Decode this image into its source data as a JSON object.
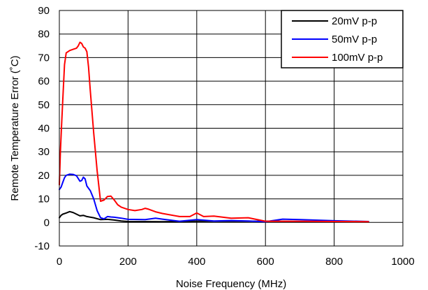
{
  "chart_data": {
    "type": "line",
    "title": "",
    "xlabel": "Noise Frequency (MHz)",
    "ylabel": "Remote Temperature Error (˚C)",
    "xlim": [
      0,
      1000
    ],
    "ylim": [
      -10,
      90
    ],
    "xticks": [
      0,
      200,
      400,
      600,
      800,
      1000
    ],
    "yticks": [
      -10,
      0,
      10,
      20,
      30,
      40,
      50,
      60,
      70,
      80,
      90
    ],
    "xtick_labels": [
      "0",
      "200",
      "400",
      "600",
      "800",
      "1000"
    ],
    "ytick_labels": [
      "-10",
      "0",
      "10",
      "20",
      "30",
      "40",
      "50",
      "60",
      "70",
      "80",
      "90"
    ],
    "grid": true,
    "legend_position": "top-right",
    "series": [
      {
        "name": "20mV p-p",
        "color": "#000000",
        "x": [
          0,
          5,
          10,
          20,
          30,
          40,
          50,
          60,
          70,
          80,
          100,
          120,
          140,
          160,
          180,
          200,
          300,
          400,
          500,
          600,
          700,
          800,
          900
        ],
        "y": [
          2,
          3,
          3.5,
          4,
          4.6,
          4.2,
          3.5,
          2.8,
          3.0,
          2.5,
          2.0,
          1.2,
          1.3,
          1.0,
          0.6,
          0.4,
          0.3,
          0.5,
          0.5,
          0.5,
          0.4,
          0.3,
          0.2
        ]
      },
      {
        "name": "50mV p-p",
        "color": "#0000ff",
        "x": [
          0,
          5,
          10,
          15,
          20,
          30,
          40,
          50,
          60,
          65,
          70,
          75,
          80,
          90,
          100,
          110,
          120,
          130,
          140,
          150,
          160,
          180,
          200,
          250,
          280,
          300,
          350,
          400,
          450,
          500,
          550,
          600,
          650,
          700,
          800,
          900
        ],
        "y": [
          14,
          15,
          17,
          19,
          20,
          20.5,
          20.4,
          19.8,
          17.5,
          17.8,
          19.2,
          18.5,
          15.5,
          13.5,
          10,
          5,
          2,
          1.5,
          2.5,
          2.3,
          2.2,
          1.8,
          1.3,
          1.2,
          1.8,
          1.4,
          0.5,
          1.2,
          0.6,
          0.8,
          0.6,
          0.3,
          1.4,
          1.2,
          0.7,
          0.4
        ]
      },
      {
        "name": "100mV p-p",
        "color": "#ff0000",
        "x": [
          0,
          3,
          6,
          10,
          15,
          20,
          30,
          40,
          50,
          55,
          60,
          65,
          70,
          75,
          80,
          85,
          90,
          100,
          110,
          120,
          130,
          140,
          150,
          160,
          170,
          180,
          200,
          220,
          240,
          250,
          260,
          280,
          300,
          350,
          380,
          400,
          420,
          450,
          500,
          550,
          600,
          700,
          800,
          900
        ],
        "y": [
          16,
          30,
          40,
          52,
          67,
          72,
          73,
          73.5,
          74,
          75,
          76.5,
          76,
          74.5,
          74,
          72.5,
          66,
          56,
          38,
          22,
          9,
          9.5,
          11,
          11.2,
          9.5,
          7.5,
          6.5,
          5.5,
          5,
          5.5,
          6,
          5.6,
          4.5,
          3.8,
          2.5,
          2.5,
          4,
          2.5,
          2.7,
          1.8,
          2,
          0.5,
          0.5,
          0.4,
          0.3
        ]
      }
    ]
  }
}
